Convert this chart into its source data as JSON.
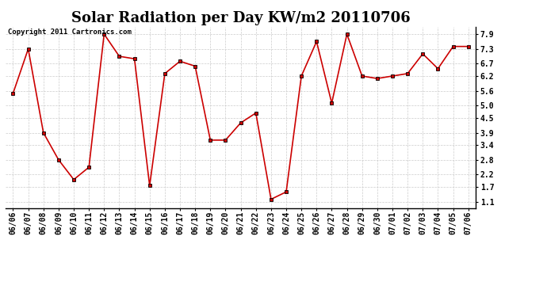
{
  "title": "Solar Radiation per Day KW/m2 20110706",
  "copyright": "Copyright 2011 Cartronics.com",
  "dates": [
    "06/06",
    "06/07",
    "06/08",
    "06/09",
    "06/10",
    "06/11",
    "06/12",
    "06/13",
    "06/14",
    "06/15",
    "06/16",
    "06/17",
    "06/18",
    "06/19",
    "06/20",
    "06/21",
    "06/22",
    "06/23",
    "06/24",
    "06/25",
    "06/26",
    "06/27",
    "06/28",
    "06/29",
    "06/30",
    "07/01",
    "07/02",
    "07/03",
    "07/04",
    "07/05",
    "07/06"
  ],
  "values": [
    5.5,
    7.3,
    3.9,
    2.8,
    2.0,
    2.5,
    7.9,
    7.0,
    6.9,
    1.75,
    6.3,
    6.8,
    6.6,
    3.6,
    3.6,
    4.3,
    4.7,
    1.2,
    1.5,
    6.2,
    7.6,
    5.1,
    7.9,
    6.2,
    6.1,
    6.2,
    6.3,
    7.1,
    6.5,
    7.4,
    7.4
  ],
  "line_color": "#cc0000",
  "marker_color": "#000000",
  "bg_color": "#ffffff",
  "grid_color": "#cccccc",
  "yticks": [
    1.1,
    1.7,
    2.2,
    2.8,
    3.4,
    3.9,
    4.5,
    5.0,
    5.6,
    6.2,
    6.7,
    7.3,
    7.9
  ],
  "ylim": [
    0.85,
    8.2
  ],
  "title_fontsize": 13,
  "label_fontsize": 7,
  "copyright_fontsize": 6.5
}
